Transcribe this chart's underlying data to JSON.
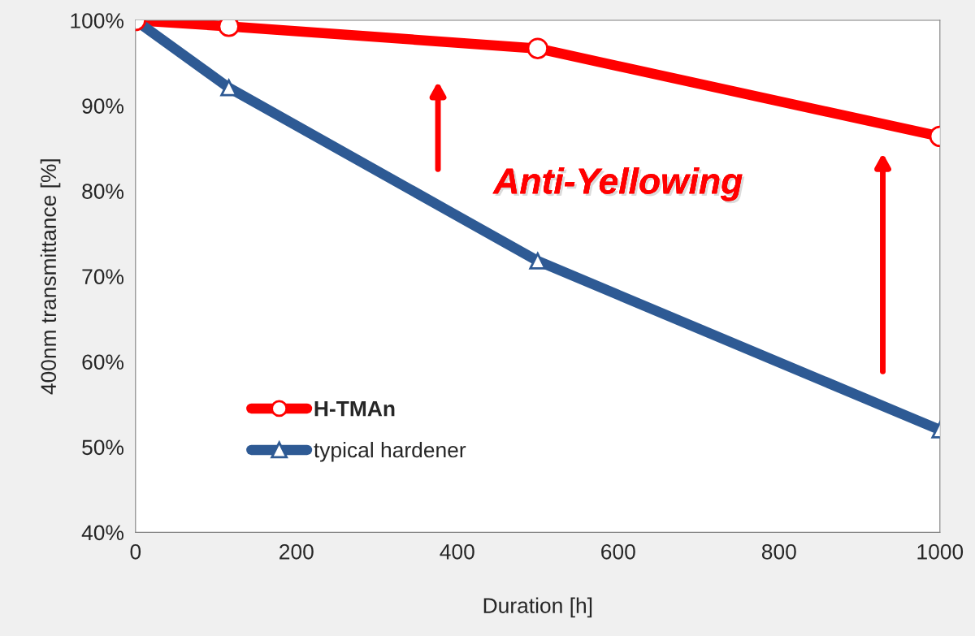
{
  "chart_data": {
    "type": "line",
    "xlabel": "Duration [h]",
    "ylabel": "400nm transmittance [%]",
    "x": [
      0,
      116,
      500,
      1000
    ],
    "series": [
      {
        "name": "H-TMAn",
        "color": "#ff0000",
        "values": [
          100,
          99.3,
          96.7,
          86.4
        ],
        "marker": "circle"
      },
      {
        "name": "typical hardener",
        "color": "#2e5a94",
        "values": [
          100,
          92.1,
          71.8,
          52.0
        ],
        "marker": "triangle"
      }
    ],
    "xlim": [
      0,
      1000
    ],
    "xticks": [
      0,
      200,
      400,
      600,
      800,
      1000
    ],
    "ylim": [
      40,
      100
    ],
    "yticks": [
      {
        "value": 40,
        "label": "40%"
      },
      {
        "value": 50,
        "label": "50%"
      },
      {
        "value": 60,
        "label": "60%"
      },
      {
        "value": 70,
        "label": "70%"
      },
      {
        "value": 80,
        "label": "80%"
      },
      {
        "value": 90,
        "label": "90%"
      },
      {
        "value": 100,
        "label": "100%"
      }
    ],
    "annotations": [
      "Anti-Yellowing"
    ],
    "grid": false,
    "legend": "bottom left",
    "line_style": "solid"
  }
}
